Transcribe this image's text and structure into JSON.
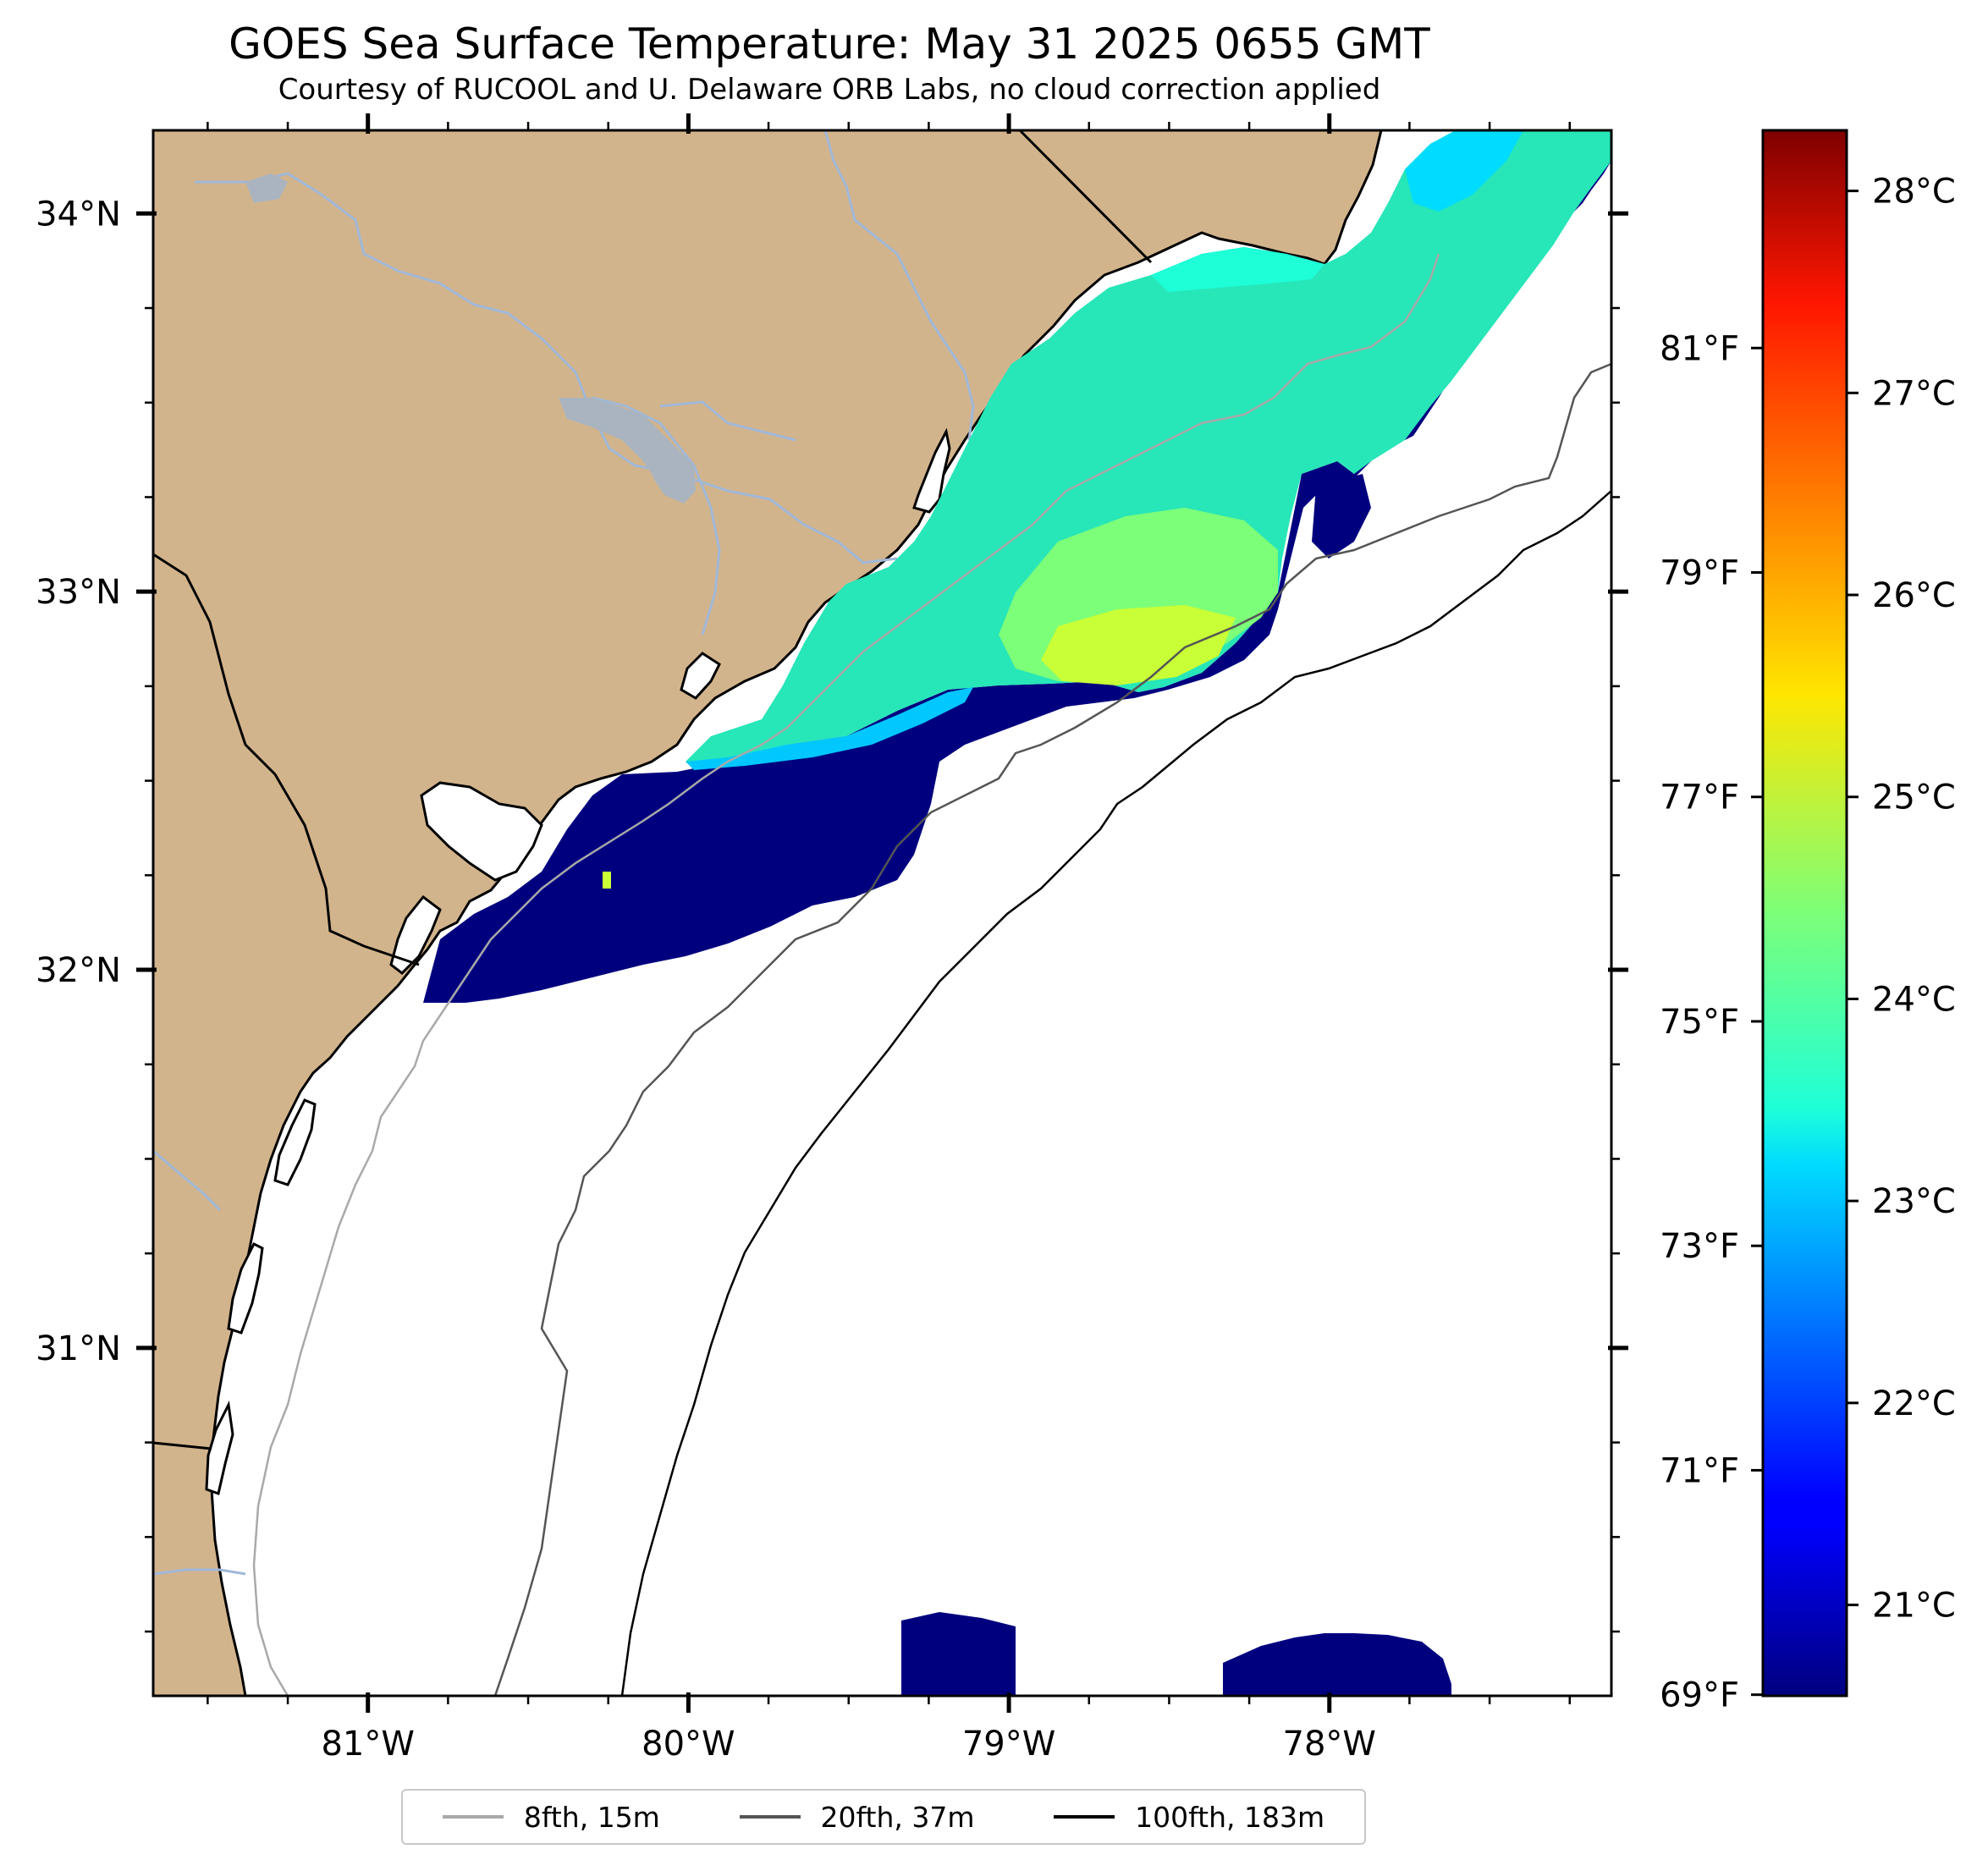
{
  "title": "GOES Sea Surface Temperature: May 31 2025 0655 GMT",
  "subtitle": "Courtesy of RUCOOL and U. Delaware ORB Labs, no cloud correction applied",
  "map": {
    "lat_labels": [
      {
        "value": 34,
        "text": "34°N"
      },
      {
        "value": 33,
        "text": "33°N"
      },
      {
        "value": 32,
        "text": "32°N"
      },
      {
        "value": 31,
        "text": "31°N"
      }
    ],
    "lon_labels": [
      {
        "value": -81,
        "text": "81°W"
      },
      {
        "value": -80,
        "text": "80°W"
      },
      {
        "value": -79,
        "text": "79°W"
      },
      {
        "value": -78,
        "text": "78°W"
      }
    ],
    "extent": {
      "lon_min": -81.67,
      "lon_max": -77.12,
      "lat_min": 30.08,
      "lat_max": 34.22
    },
    "land_color": "#d2b48c",
    "river_color": "#a0b8d8"
  },
  "colorbar": {
    "colormap": "jet",
    "range_c": [
      20.55,
      28.3
    ],
    "celsius_ticks": [
      {
        "value": 21,
        "text": "21°C"
      },
      {
        "value": 22,
        "text": "22°C"
      },
      {
        "value": 23,
        "text": "23°C"
      },
      {
        "value": 24,
        "text": "24°C"
      },
      {
        "value": 25,
        "text": "25°C"
      },
      {
        "value": 26,
        "text": "26°C"
      },
      {
        "value": 27,
        "text": "27°C"
      },
      {
        "value": 28,
        "text": "28°C"
      }
    ],
    "fahrenheit_ticks": [
      {
        "value": 69,
        "text": "69°F"
      },
      {
        "value": 71,
        "text": "71°F"
      },
      {
        "value": 73,
        "text": "73°F"
      },
      {
        "value": 75,
        "text": "75°F"
      },
      {
        "value": 77,
        "text": "77°F"
      },
      {
        "value": 79,
        "text": "79°F"
      },
      {
        "value": 81,
        "text": "81°F"
      }
    ]
  },
  "legend": {
    "items": [
      {
        "label": "8fth, 15m",
        "color": "#a9a9a9"
      },
      {
        "label": "20fth, 37m",
        "color": "#555555"
      },
      {
        "label": "100fth, 183m",
        "color": "#000000"
      }
    ]
  }
}
